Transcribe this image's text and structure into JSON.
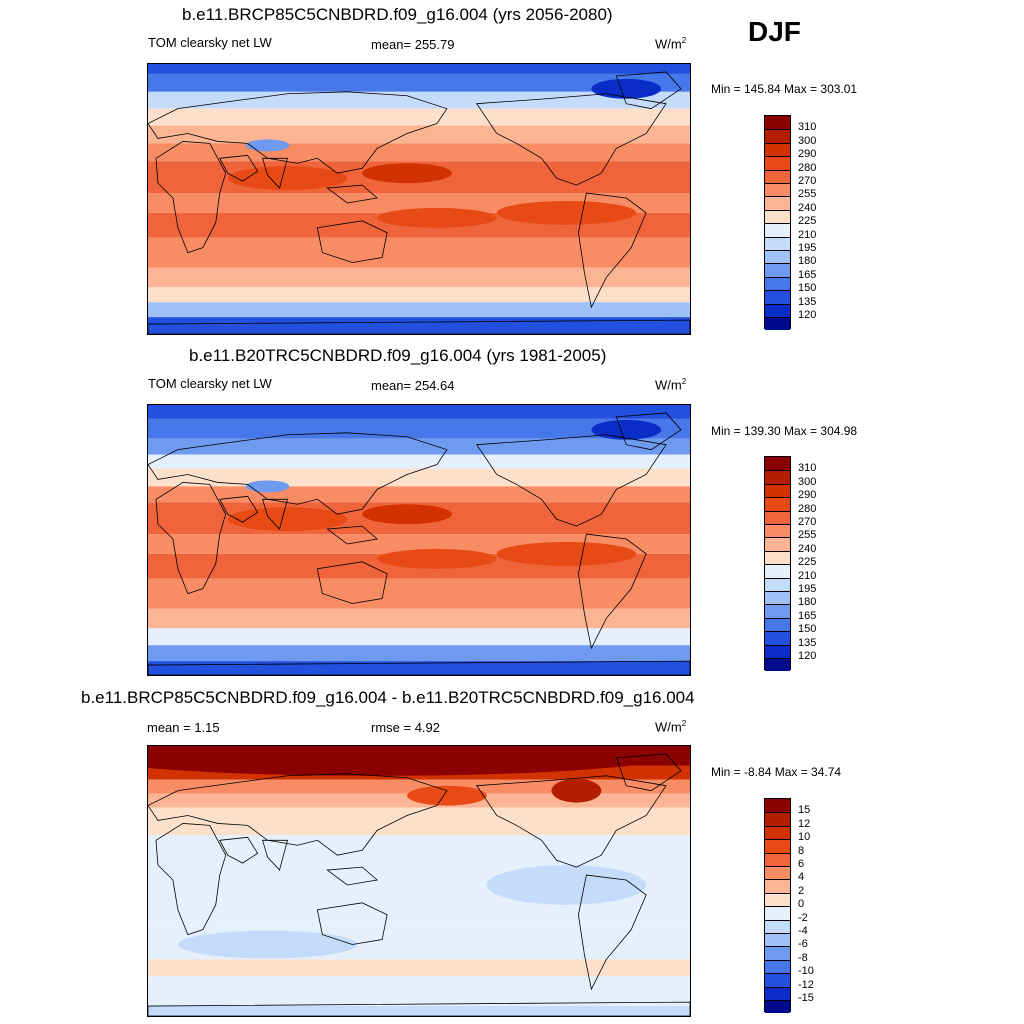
{
  "season": "DJF",
  "panels": [
    {
      "title": "b.e11.BRCP85C5CNBDRD.f09_g16.004 (yrs 2056-2080)",
      "left_label": "TOM clearsky net LW",
      "center_label": "mean= 255.79",
      "units": "W/m",
      "units_sup": "2",
      "minmax": "Min = 145.84 Max = 303.01",
      "palette": "abs",
      "scenario": "future"
    },
    {
      "title": "b.e11.B20TRC5CNBDRD.f09_g16.004 (yrs 1981-2005)",
      "left_label": "TOM clearsky net LW",
      "center_label": "mean= 254.64",
      "units": "W/m",
      "units_sup": "2",
      "minmax": "Min = 139.30 Max = 304.98",
      "palette": "abs",
      "scenario": "hist"
    },
    {
      "title": "b.e11.BRCP85C5CNBDRD.f09_g16.004 - b.e11.B20TRC5CNBDRD.f09_g16.004",
      "left_label": "mean =   1.15",
      "center_label": "rmse =   4.92",
      "units": "W/m",
      "units_sup": "2",
      "minmax": "Min =  -8.84 Max =  34.74",
      "palette": "diff",
      "scenario": "diff"
    }
  ],
  "colorbars": {
    "abs": {
      "labels": [
        "310",
        "300",
        "290",
        "280",
        "270",
        "255",
        "240",
        "225",
        "210",
        "195",
        "180",
        "165",
        "150",
        "135",
        "120"
      ],
      "colors": [
        "#8b0000",
        "#b41e00",
        "#d23200",
        "#e74a14",
        "#f0643c",
        "#f88c64",
        "#fbb494",
        "#fde0cc",
        "#e6f0fc",
        "#c4dcfa",
        "#9ec2f7",
        "#6e9af0",
        "#4678ea",
        "#2350df",
        "#0a2dc8",
        "#000a8c"
      ]
    },
    "diff": {
      "labels": [
        "15",
        "12",
        "10",
        "8",
        "6",
        "4",
        "2",
        "0",
        "-2",
        "-4",
        "-6",
        "-8",
        "-10",
        "-12",
        "-15"
      ],
      "colors": [
        "#8b0000",
        "#b41e00",
        "#d23200",
        "#e74a14",
        "#f0643c",
        "#f88c64",
        "#fbb494",
        "#fde0cc",
        "#e6f0fc",
        "#c4dcfa",
        "#9ec2f7",
        "#6e9af0",
        "#4678ea",
        "#2350df",
        "#0a2dc8",
        "#000a8c"
      ]
    }
  }
}
